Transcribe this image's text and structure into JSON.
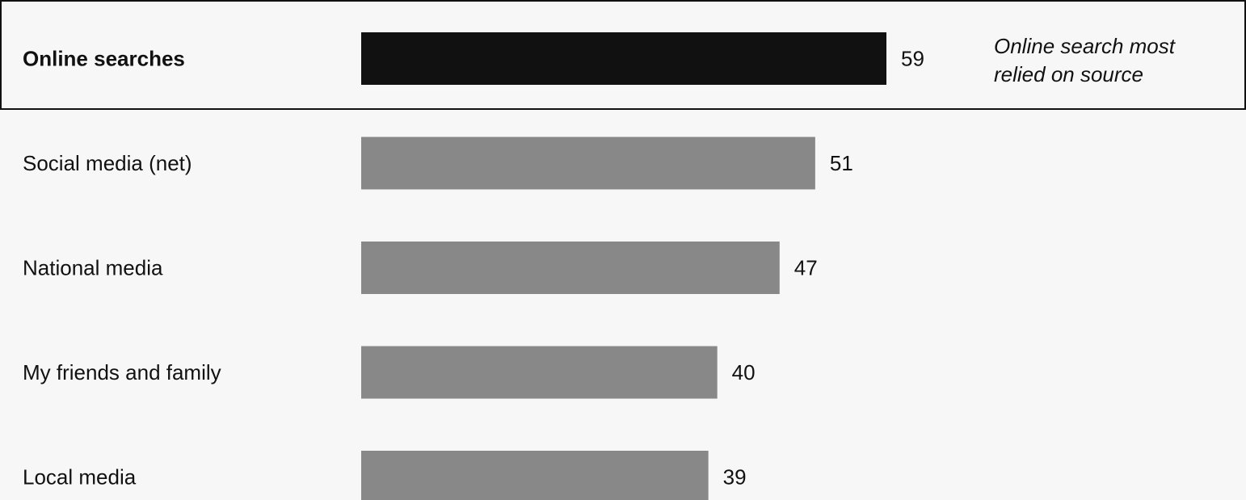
{
  "chart_data": {
    "type": "bar",
    "orientation": "horizontal",
    "categories": [
      "Online searches",
      "Social media (net)",
      "National media",
      "My friends and family",
      "Local media"
    ],
    "values": [
      59,
      51,
      47,
      40,
      39
    ],
    "highlight_index": 0,
    "highlight_note": [
      "Online search most",
      "relied on source"
    ],
    "xlim": [
      0,
      59
    ],
    "grid": false,
    "colors": {
      "highlight_bar": "#111111",
      "bar": "#888888",
      "background": "#f7f7f7",
      "frame": "#111111"
    }
  }
}
